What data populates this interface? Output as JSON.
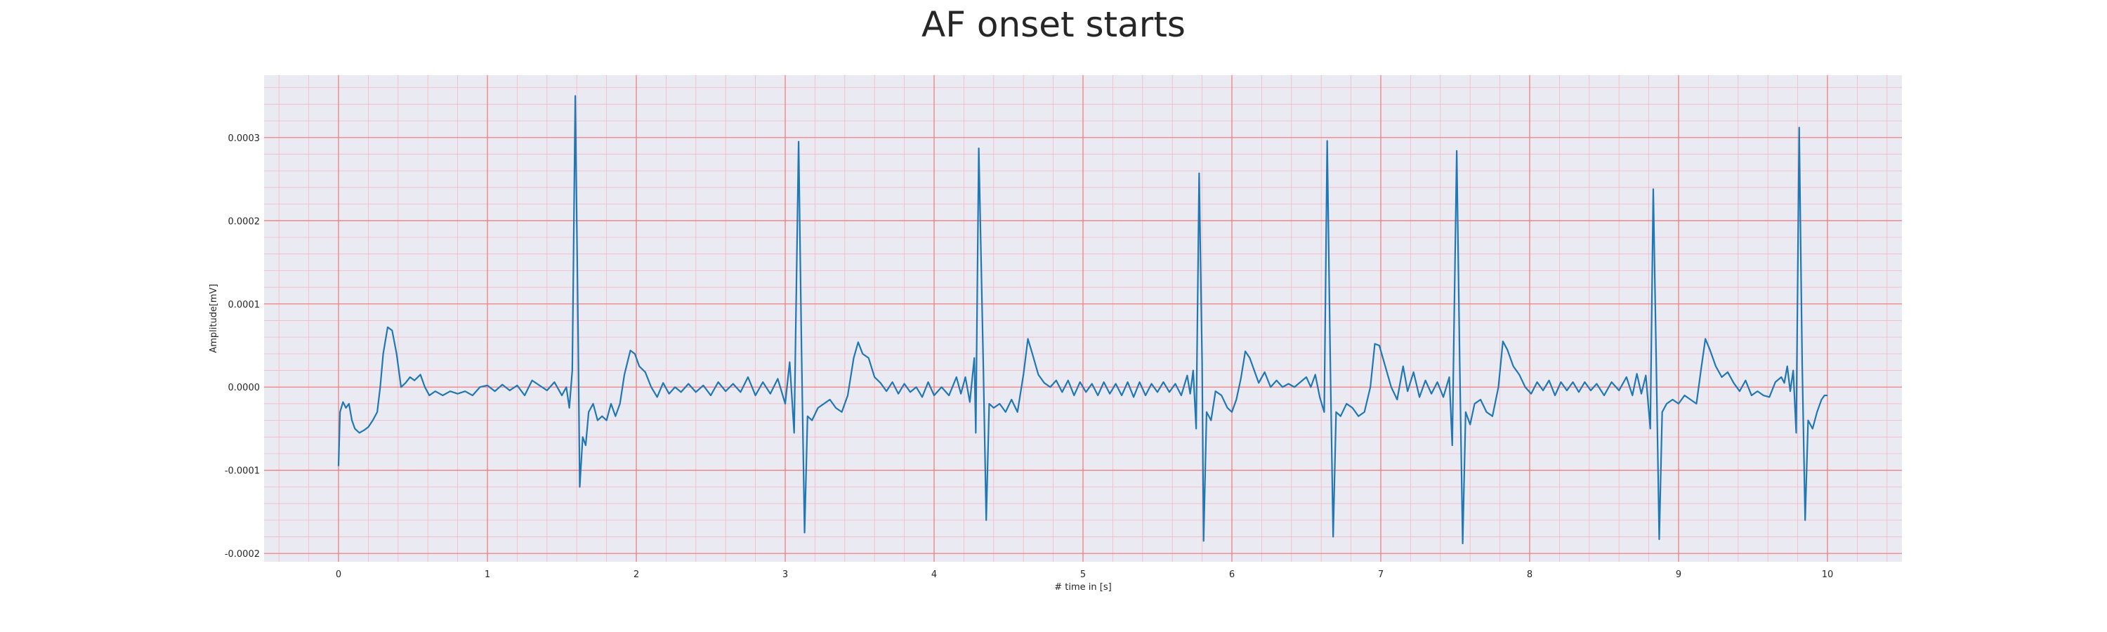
{
  "chart_data": {
    "type": "line",
    "title": "AF onset starts",
    "xlabel": "# time in [s]",
    "ylabel": "Amplitude[mV]",
    "xlim": [
      -0.5,
      10.5
    ],
    "ylim": [
      -0.00021,
      0.000375
    ],
    "x_ticks": [
      0,
      1,
      2,
      3,
      4,
      5,
      6,
      7,
      8,
      9,
      10
    ],
    "x_tick_labels": [
      "0",
      "1",
      "2",
      "3",
      "4",
      "5",
      "6",
      "7",
      "8",
      "9",
      "10"
    ],
    "y_ticks": [
      -0.0002,
      -0.0001,
      0.0,
      0.0001,
      0.0002,
      0.0003
    ],
    "y_tick_labels": [
      "-0.0002",
      "-0.0001",
      "0.0000",
      "0.0001",
      "0.0002",
      "0.0003"
    ],
    "grid": true,
    "minor_grid": true,
    "colors": {
      "background": "#eaeaf2",
      "major_grid": "#f08080",
      "minor_grid": "#f4b8c4",
      "line": "#1f77b4"
    },
    "series": [
      {
        "name": "",
        "points": [
          [
            0.0,
            -9.5e-05
          ],
          [
            0.01,
            -3e-05
          ],
          [
            0.03,
            -1.8e-05
          ],
          [
            0.05,
            -2.5e-05
          ],
          [
            0.07,
            -2e-05
          ],
          [
            0.09,
            -4e-05
          ],
          [
            0.11,
            -5e-05
          ],
          [
            0.14,
            -5.5e-05
          ],
          [
            0.17,
            -5.2e-05
          ],
          [
            0.2,
            -4.8e-05
          ],
          [
            0.23,
            -4e-05
          ],
          [
            0.26,
            -3e-05
          ],
          [
            0.28,
            0.0
          ],
          [
            0.3,
            4e-05
          ],
          [
            0.33,
            7.2e-05
          ],
          [
            0.36,
            6.8e-05
          ],
          [
            0.39,
            4e-05
          ],
          [
            0.42,
            0.0
          ],
          [
            0.45,
            5e-06
          ],
          [
            0.48,
            1.2e-05
          ],
          [
            0.51,
            8e-06
          ],
          [
            0.55,
            1.5e-05
          ],
          [
            0.58,
            0.0
          ],
          [
            0.61,
            -1e-05
          ],
          [
            0.65,
            -5e-06
          ],
          [
            0.7,
            -1e-05
          ],
          [
            0.75,
            -5e-06
          ],
          [
            0.8,
            -8e-06
          ],
          [
            0.85,
            -5e-06
          ],
          [
            0.9,
            -1e-05
          ],
          [
            0.95,
            0.0
          ],
          [
            1.0,
            2e-06
          ],
          [
            1.05,
            -5e-06
          ],
          [
            1.1,
            3e-06
          ],
          [
            1.15,
            -4e-06
          ],
          [
            1.2,
            2e-06
          ],
          [
            1.25,
            -1e-05
          ],
          [
            1.3,
            8e-06
          ],
          [
            1.35,
            2e-06
          ],
          [
            1.4,
            -4e-06
          ],
          [
            1.45,
            6e-06
          ],
          [
            1.5,
            -1e-05
          ],
          [
            1.53,
            0.0
          ],
          [
            1.55,
            -2.5e-05
          ],
          [
            1.57,
            2e-05
          ],
          [
            1.59,
            0.00035
          ],
          [
            1.61,
            5e-05
          ],
          [
            1.62,
            -0.00012
          ],
          [
            1.64,
            -6e-05
          ],
          [
            1.66,
            -7e-05
          ],
          [
            1.68,
            -3e-05
          ],
          [
            1.71,
            -2e-05
          ],
          [
            1.74,
            -4e-05
          ],
          [
            1.77,
            -3.5e-05
          ],
          [
            1.8,
            -4e-05
          ],
          [
            1.83,
            -2e-05
          ],
          [
            1.86,
            -3.5e-05
          ],
          [
            1.89,
            -2e-05
          ],
          [
            1.92,
            1.5e-05
          ],
          [
            1.96,
            4.4e-05
          ],
          [
            1.99,
            4e-05
          ],
          [
            2.02,
            2.5e-05
          ],
          [
            2.06,
            1.8e-05
          ],
          [
            2.1,
            0.0
          ],
          [
            2.14,
            -1.2e-05
          ],
          [
            2.18,
            5e-06
          ],
          [
            2.22,
            -8e-06
          ],
          [
            2.26,
            0.0
          ],
          [
            2.3,
            -6e-06
          ],
          [
            2.35,
            4e-06
          ],
          [
            2.4,
            -6e-06
          ],
          [
            2.45,
            2e-06
          ],
          [
            2.5,
            -1e-05
          ],
          [
            2.55,
            6e-06
          ],
          [
            2.6,
            -5e-06
          ],
          [
            2.65,
            4e-06
          ],
          [
            2.7,
            -6e-06
          ],
          [
            2.75,
            1.2e-05
          ],
          [
            2.8,
            -1e-05
          ],
          [
            2.85,
            6e-06
          ],
          [
            2.9,
            -8e-06
          ],
          [
            2.95,
            1e-05
          ],
          [
            3.0,
            -2e-05
          ],
          [
            3.03,
            3e-05
          ],
          [
            3.06,
            -5.5e-05
          ],
          [
            3.09,
            0.000295
          ],
          [
            3.11,
            4e-05
          ],
          [
            3.13,
            -0.000175
          ],
          [
            3.15,
            -3.5e-05
          ],
          [
            3.18,
            -4e-05
          ],
          [
            3.22,
            -2.5e-05
          ],
          [
            3.26,
            -2e-05
          ],
          [
            3.3,
            -1.5e-05
          ],
          [
            3.34,
            -2.5e-05
          ],
          [
            3.38,
            -3e-05
          ],
          [
            3.42,
            -1e-05
          ],
          [
            3.46,
            3.5e-05
          ],
          [
            3.49,
            5.4e-05
          ],
          [
            3.52,
            4e-05
          ],
          [
            3.56,
            3.5e-05
          ],
          [
            3.6,
            1.2e-05
          ],
          [
            3.64,
            5e-06
          ],
          [
            3.68,
            -5e-06
          ],
          [
            3.72,
            6e-06
          ],
          [
            3.76,
            -8e-06
          ],
          [
            3.8,
            4e-06
          ],
          [
            3.84,
            -6e-06
          ],
          [
            3.88,
            0.0
          ],
          [
            3.92,
            -1.2e-05
          ],
          [
            3.96,
            6e-06
          ],
          [
            4.0,
            -1e-05
          ],
          [
            4.05,
            0.0
          ],
          [
            4.1,
            -1e-05
          ],
          [
            4.15,
            1.2e-05
          ],
          [
            4.18,
            -8e-06
          ],
          [
            4.21,
            1.2e-05
          ],
          [
            4.24,
            -1.8e-05
          ],
          [
            4.27,
            3.5e-05
          ],
          [
            4.28,
            -5.5e-05
          ],
          [
            4.3,
            0.000287
          ],
          [
            4.33,
            3e-05
          ],
          [
            4.35,
            -0.00016
          ],
          [
            4.37,
            -2e-05
          ],
          [
            4.4,
            -2.5e-05
          ],
          [
            4.44,
            -2e-05
          ],
          [
            4.48,
            -3e-05
          ],
          [
            4.52,
            -1.5e-05
          ],
          [
            4.56,
            -3e-05
          ],
          [
            4.6,
            1.5e-05
          ],
          [
            4.63,
            5.8e-05
          ],
          [
            4.66,
            4e-05
          ],
          [
            4.7,
            1.5e-05
          ],
          [
            4.74,
            5e-06
          ],
          [
            4.78,
            0.0
          ],
          [
            4.82,
            8e-06
          ],
          [
            4.86,
            -6e-06
          ],
          [
            4.9,
            8e-06
          ],
          [
            4.94,
            -1e-05
          ],
          [
            4.98,
            6e-06
          ],
          [
            5.02,
            -6e-06
          ],
          [
            5.06,
            4e-06
          ],
          [
            5.1,
            -1e-05
          ],
          [
            5.14,
            6e-06
          ],
          [
            5.18,
            -8e-06
          ],
          [
            5.22,
            4e-06
          ],
          [
            5.26,
            -1e-05
          ],
          [
            5.3,
            6e-06
          ],
          [
            5.34,
            -1.2e-05
          ],
          [
            5.38,
            6e-06
          ],
          [
            5.42,
            -1e-05
          ],
          [
            5.46,
            4e-06
          ],
          [
            5.5,
            -6e-06
          ],
          [
            5.54,
            6e-06
          ],
          [
            5.58,
            -6e-06
          ],
          [
            5.62,
            4e-06
          ],
          [
            5.66,
            -1e-05
          ],
          [
            5.7,
            1.4e-05
          ],
          [
            5.72,
            -8e-06
          ],
          [
            5.74,
            2e-05
          ],
          [
            5.76,
            -5e-05
          ],
          [
            5.78,
            0.000257
          ],
          [
            5.8,
            3e-05
          ],
          [
            5.81,
            -0.000185
          ],
          [
            5.83,
            -3e-05
          ],
          [
            5.86,
            -4e-05
          ],
          [
            5.89,
            -5e-06
          ],
          [
            5.93,
            -1e-05
          ],
          [
            5.97,
            -2.5e-05
          ],
          [
            6.0,
            -3e-05
          ],
          [
            6.03,
            -1.5e-05
          ],
          [
            6.06,
            1e-05
          ],
          [
            6.09,
            4.3e-05
          ],
          [
            6.12,
            3.5e-05
          ],
          [
            6.15,
            2e-05
          ],
          [
            6.18,
            5e-06
          ],
          [
            6.22,
            1.8e-05
          ],
          [
            6.26,
            0.0
          ],
          [
            6.3,
            8e-06
          ],
          [
            6.34,
            0.0
          ],
          [
            6.38,
            4e-06
          ],
          [
            6.42,
            0.0
          ],
          [
            6.46,
            6e-06
          ],
          [
            6.5,
            1.2e-05
          ],
          [
            6.53,
            0.0
          ],
          [
            6.56,
            1.5e-05
          ],
          [
            6.59,
            -1.2e-05
          ],
          [
            6.62,
            -3e-05
          ],
          [
            6.64,
            0.000296
          ],
          [
            6.66,
            4e-05
          ],
          [
            6.68,
            -0.00018
          ],
          [
            6.7,
            -3e-05
          ],
          [
            6.73,
            -3.5e-05
          ],
          [
            6.77,
            -2e-05
          ],
          [
            6.81,
            -2.5e-05
          ],
          [
            6.85,
            -3.5e-05
          ],
          [
            6.89,
            -3e-05
          ],
          [
            6.93,
            0.0
          ],
          [
            6.96,
            5.2e-05
          ],
          [
            6.99,
            5e-05
          ],
          [
            7.03,
            2.5e-05
          ],
          [
            7.07,
            0.0
          ],
          [
            7.11,
            -1.5e-05
          ],
          [
            7.15,
            2.5e-05
          ],
          [
            7.18,
            -5e-06
          ],
          [
            7.22,
            1.8e-05
          ],
          [
            7.26,
            -1.2e-05
          ],
          [
            7.3,
            8e-06
          ],
          [
            7.34,
            -8e-06
          ],
          [
            7.38,
            6e-06
          ],
          [
            7.42,
            -1.2e-05
          ],
          [
            7.46,
            1.2e-05
          ],
          [
            7.48,
            -7e-05
          ],
          [
            7.49,
            5e-05
          ],
          [
            7.51,
            0.000284
          ],
          [
            7.53,
            3e-05
          ],
          [
            7.55,
            -0.000188
          ],
          [
            7.57,
            -3e-05
          ],
          [
            7.6,
            -4.5e-05
          ],
          [
            7.63,
            -2e-05
          ],
          [
            7.67,
            -1.5e-05
          ],
          [
            7.71,
            -3e-05
          ],
          [
            7.75,
            -3.5e-05
          ],
          [
            7.79,
            0.0
          ],
          [
            7.82,
            5.5e-05
          ],
          [
            7.85,
            4.5e-05
          ],
          [
            7.89,
            2.5e-05
          ],
          [
            7.93,
            1.5e-05
          ],
          [
            7.97,
            0.0
          ],
          [
            8.01,
            -8e-06
          ],
          [
            8.05,
            6e-06
          ],
          [
            8.09,
            -4e-06
          ],
          [
            8.13,
            8e-06
          ],
          [
            8.17,
            -1e-05
          ],
          [
            8.21,
            6e-06
          ],
          [
            8.25,
            -4e-06
          ],
          [
            8.29,
            6e-06
          ],
          [
            8.33,
            -6e-06
          ],
          [
            8.37,
            6e-06
          ],
          [
            8.41,
            -4e-06
          ],
          [
            8.45,
            4e-06
          ],
          [
            8.5,
            -1e-05
          ],
          [
            8.55,
            6e-06
          ],
          [
            8.6,
            -4e-06
          ],
          [
            8.65,
            1.2e-05
          ],
          [
            8.69,
            -1e-05
          ],
          [
            8.72,
            1.6e-05
          ],
          [
            8.75,
            -8e-06
          ],
          [
            8.78,
            1.4e-05
          ],
          [
            8.81,
            -5e-05
          ],
          [
            8.83,
            0.000238
          ],
          [
            8.85,
            3e-05
          ],
          [
            8.87,
            -0.000183
          ],
          [
            8.89,
            -3e-05
          ],
          [
            8.92,
            -2e-05
          ],
          [
            8.96,
            -1.5e-05
          ],
          [
            9.0,
            -2e-05
          ],
          [
            9.04,
            -1e-05
          ],
          [
            9.08,
            -1.5e-05
          ],
          [
            9.12,
            -2e-05
          ],
          [
            9.15,
            2e-05
          ],
          [
            9.18,
            5.8e-05
          ],
          [
            9.21,
            4.5e-05
          ],
          [
            9.25,
            2.5e-05
          ],
          [
            9.29,
            1.2e-05
          ],
          [
            9.33,
            1.8e-05
          ],
          [
            9.37,
            5e-06
          ],
          [
            9.41,
            -5e-06
          ],
          [
            9.45,
            8e-06
          ],
          [
            9.49,
            -1e-05
          ],
          [
            9.53,
            -5e-06
          ],
          [
            9.57,
            -1e-05
          ],
          [
            9.61,
            -1.2e-05
          ],
          [
            9.65,
            6e-06
          ],
          [
            9.69,
            1.2e-05
          ],
          [
            9.71,
            5e-06
          ],
          [
            9.73,
            2.5e-05
          ],
          [
            9.75,
            -5e-06
          ],
          [
            9.77,
            2e-05
          ],
          [
            9.79,
            -5.5e-05
          ],
          [
            9.81,
            0.000312
          ],
          [
            9.83,
            3e-05
          ],
          [
            9.85,
            -0.00016
          ],
          [
            9.87,
            -4e-05
          ],
          [
            9.9,
            -5e-05
          ],
          [
            9.93,
            -3e-05
          ],
          [
            9.96,
            -1.5e-05
          ],
          [
            9.98,
            -1e-05
          ],
          [
            10.0,
            -1e-05
          ]
        ]
      }
    ]
  }
}
